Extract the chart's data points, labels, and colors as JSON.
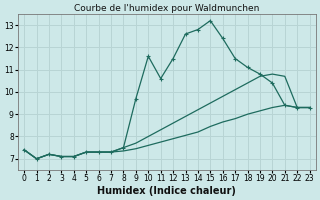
{
  "title": "Courbe de l'humidex pour Waldmunchen",
  "xlabel": "Humidex (Indice chaleur)",
  "xlim": [
    -0.5,
    23.5
  ],
  "ylim": [
    6.5,
    13.5
  ],
  "yticks": [
    7,
    8,
    9,
    10,
    11,
    12,
    13
  ],
  "xticks": [
    0,
    1,
    2,
    3,
    4,
    5,
    6,
    7,
    8,
    9,
    10,
    11,
    12,
    13,
    14,
    15,
    16,
    17,
    18,
    19,
    20,
    21,
    22,
    23
  ],
  "bg_color": "#cde8e8",
  "grid_color": "#b8d4d4",
  "line_color": "#1e6b5e",
  "line1_x": [
    0,
    1,
    2,
    3,
    4,
    5,
    6,
    7,
    8,
    9,
    10,
    11,
    12,
    13,
    14,
    15,
    16,
    17,
    18,
    19,
    20,
    21,
    22,
    23
  ],
  "line1_y": [
    7.4,
    7.0,
    7.2,
    7.1,
    7.1,
    7.3,
    7.3,
    7.3,
    7.5,
    9.7,
    11.6,
    10.6,
    11.5,
    12.6,
    12.8,
    13.2,
    12.4,
    11.5,
    11.1,
    10.8,
    10.4,
    9.4,
    9.3,
    9.3
  ],
  "line2_x": [
    0,
    1,
    2,
    3,
    4,
    5,
    6,
    7,
    8,
    9,
    10,
    11,
    12,
    13,
    14,
    15,
    16,
    17,
    18,
    19,
    20,
    21,
    22,
    23
  ],
  "line2_y": [
    7.4,
    7.0,
    7.2,
    7.1,
    7.1,
    7.3,
    7.3,
    7.3,
    7.35,
    7.45,
    7.6,
    7.75,
    7.9,
    8.05,
    8.2,
    8.45,
    8.65,
    8.8,
    9.0,
    9.15,
    9.3,
    9.4,
    9.3,
    9.3
  ],
  "line3_x": [
    0,
    1,
    2,
    3,
    4,
    5,
    6,
    7,
    8,
    9,
    10,
    11,
    12,
    13,
    14,
    15,
    16,
    17,
    18,
    19,
    20,
    21,
    22,
    23
  ],
  "line3_y": [
    7.4,
    7.0,
    7.2,
    7.1,
    7.1,
    7.3,
    7.3,
    7.3,
    7.5,
    7.7,
    8.0,
    8.3,
    8.6,
    8.9,
    9.2,
    9.5,
    9.8,
    10.1,
    10.4,
    10.7,
    10.8,
    10.7,
    9.3,
    9.3
  ],
  "title_fontsize": 6.5,
  "label_fontsize": 7,
  "tick_fontsize": 5.5
}
